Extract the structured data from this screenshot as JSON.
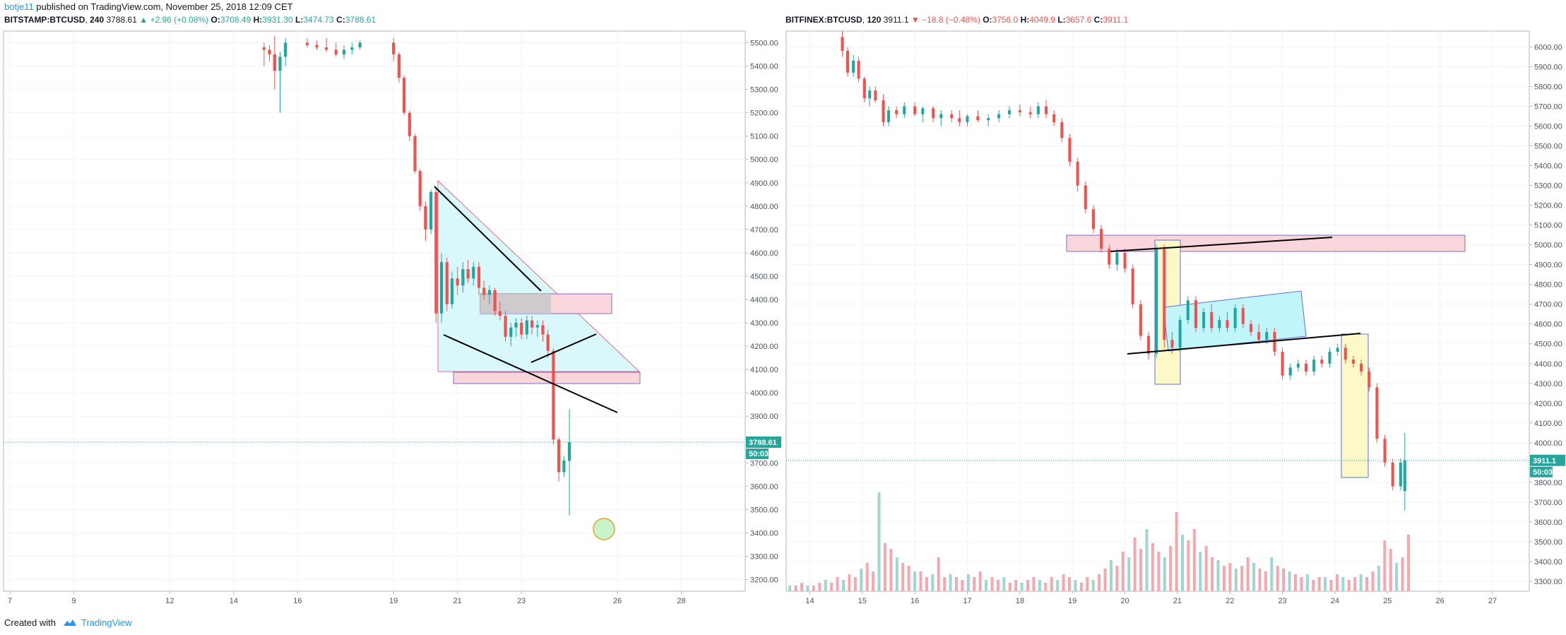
{
  "publication": {
    "author": "botje11",
    "text": " published on TradingView.com, November 25, 2018 12:09 CET"
  },
  "footer": {
    "created_with": "Created with",
    "brand": "TradingView"
  },
  "colors": {
    "up": "#26a69a",
    "down": "#ef5350",
    "grid": "#f0f3fa",
    "last_line": "#26a69a"
  },
  "chart_data": [
    {
      "type": "candlestick",
      "symbol": "BITSTAMP:BTCUSD",
      "interval": "240",
      "last": "3788.61",
      "change": "+2.96 (+0.08%)",
      "direction": "up",
      "ohlc": {
        "O": "3708.49",
        "H": "3931.30",
        "L": "3474.73",
        "C": "3788.61"
      },
      "ylim": [
        3150,
        5550
      ],
      "yticks": [
        3200,
        3300,
        3400,
        3500,
        3600,
        3700,
        3800,
        3900,
        4000,
        4100,
        4200,
        4300,
        4400,
        4500,
        4600,
        4700,
        4800,
        4900,
        5000,
        5100,
        5200,
        5300,
        5400,
        5500
      ],
      "xlim": [
        6.8,
        30.0
      ],
      "xticks": [
        {
          "label": "7",
          "x": 7.0
        },
        {
          "label": "9",
          "x": 9.0
        },
        {
          "label": "12",
          "x": 12.0
        },
        {
          "label": "14",
          "x": 14.0
        },
        {
          "label": "16",
          "x": 16.0
        },
        {
          "label": "19",
          "x": 19.0
        },
        {
          "label": "21",
          "x": 21.0
        },
        {
          "label": "23",
          "x": 23.0
        },
        {
          "label": "26",
          "x": 26.0
        },
        {
          "label": "28",
          "x": 28.0
        }
      ],
      "price_tag": "3788.61",
      "countdown": "50:03",
      "candles": [
        [
          14.95,
          5480,
          5500,
          5400,
          5470
        ],
        [
          15.12,
          5470,
          5490,
          5420,
          5450
        ],
        [
          15.28,
          5450,
          5530,
          5300,
          5380
        ],
        [
          15.45,
          5380,
          5460,
          5200,
          5440
        ],
        [
          15.62,
          5440,
          5520,
          5400,
          5500
        ],
        [
          16.3,
          5500,
          5520,
          5480,
          5490
        ],
        [
          16.6,
          5490,
          5510,
          5470,
          5480
        ],
        [
          16.9,
          5480,
          5520,
          5460,
          5470
        ],
        [
          17.2,
          5470,
          5500,
          5440,
          5450
        ],
        [
          17.45,
          5450,
          5490,
          5430,
          5470
        ],
        [
          17.7,
          5470,
          5500,
          5450,
          5480
        ],
        [
          17.95,
          5480,
          5510,
          5470,
          5500
        ],
        [
          19.0,
          5500,
          5520,
          5420,
          5450
        ],
        [
          19.17,
          5450,
          5460,
          5330,
          5350
        ],
        [
          19.33,
          5350,
          5360,
          5190,
          5200
        ],
        [
          19.5,
          5200,
          5210,
          5080,
          5100
        ],
        [
          19.67,
          5100,
          5110,
          4940,
          4950
        ],
        [
          19.83,
          4950,
          4960,
          4780,
          4800
        ],
        [
          20.0,
          4800,
          4820,
          4650,
          4700
        ],
        [
          20.17,
          4700,
          4870,
          4680,
          4860
        ],
        [
          20.33,
          4860,
          4880,
          4300,
          4340
        ],
        [
          20.5,
          4340,
          4600,
          4300,
          4560
        ],
        [
          20.67,
          4560,
          4580,
          4350,
          4380
        ],
        [
          20.83,
          4380,
          4520,
          4360,
          4490
        ],
        [
          21.0,
          4490,
          4540,
          4420,
          4460
        ],
        [
          21.17,
          4460,
          4560,
          4430,
          4530
        ],
        [
          21.33,
          4530,
          4570,
          4470,
          4490
        ],
        [
          21.5,
          4490,
          4560,
          4460,
          4540
        ],
        [
          21.67,
          4540,
          4560,
          4420,
          4450
        ],
        [
          21.83,
          4450,
          4480,
          4400,
          4420
        ],
        [
          22.0,
          4420,
          4460,
          4380,
          4440
        ],
        [
          22.17,
          4440,
          4450,
          4330,
          4350
        ],
        [
          22.33,
          4350,
          4390,
          4310,
          4330
        ],
        [
          22.5,
          4330,
          4350,
          4220,
          4240
        ],
        [
          22.67,
          4240,
          4300,
          4200,
          4280
        ],
        [
          22.83,
          4280,
          4320,
          4240,
          4300
        ],
        [
          23.0,
          4300,
          4320,
          4230,
          4250
        ],
        [
          23.17,
          4250,
          4330,
          4230,
          4310
        ],
        [
          23.33,
          4310,
          4330,
          4250,
          4280
        ],
        [
          23.5,
          4280,
          4310,
          4240,
          4290
        ],
        [
          23.67,
          4290,
          4310,
          4220,
          4250
        ],
        [
          23.83,
          4250,
          4270,
          4150,
          4180
        ],
        [
          24.0,
          4180,
          4190,
          3780,
          3800
        ],
        [
          24.17,
          3800,
          3810,
          3620,
          3660
        ],
        [
          24.33,
          3660,
          3730,
          3640,
          3710
        ],
        [
          24.5,
          3708.49,
          3931.3,
          3474.73,
          3788.61
        ]
      ]
    },
    {
      "type": "candlestick",
      "symbol": "BITFINEX:BTCUSD",
      "interval": "120",
      "last": "3911.1",
      "change": "−18.8 (−0.48%)",
      "direction": "down",
      "ohlc": {
        "O": "3756.0",
        "H": "4049.9",
        "L": "3657.6",
        "C": "3911.1"
      },
      "ylim": [
        3250,
        6080
      ],
      "yticks": [
        3300,
        3400,
        3500,
        3600,
        3700,
        3800,
        3900,
        4000,
        4100,
        4200,
        4300,
        4400,
        4500,
        4600,
        4700,
        4800,
        4900,
        5000,
        5100,
        5200,
        5300,
        5400,
        5500,
        5600,
        5700,
        5800,
        5900,
        6000
      ],
      "xlim": [
        13.55,
        27.7
      ],
      "xticks": [
        {
          "label": "14",
          "x": 14.0
        },
        {
          "label": "15",
          "x": 15.0
        },
        {
          "label": "16",
          "x": 16.0
        },
        {
          "label": "17",
          "x": 17.0
        },
        {
          "label": "18",
          "x": 18.0
        },
        {
          "label": "19",
          "x": 19.0
        },
        {
          "label": "20",
          "x": 20.0
        },
        {
          "label": "21",
          "x": 21.0
        },
        {
          "label": "22",
          "x": 22.0
        },
        {
          "label": "23",
          "x": 23.0
        },
        {
          "label": "24",
          "x": 24.0
        },
        {
          "label": "25",
          "x": 25.0
        },
        {
          "label": "26",
          "x": 26.0
        },
        {
          "label": "27",
          "x": 27.0
        }
      ],
      "price_tag": "3911.1",
      "countdown": "50:03",
      "candles": [
        [
          14.62,
          6050,
          6080,
          5950,
          5980
        ],
        [
          14.72,
          5980,
          6000,
          5850,
          5870
        ],
        [
          14.83,
          5870,
          5960,
          5850,
          5930
        ],
        [
          14.93,
          5930,
          5950,
          5820,
          5840
        ],
        [
          15.04,
          5840,
          5850,
          5720,
          5740
        ],
        [
          15.14,
          5740,
          5800,
          5700,
          5780
        ],
        [
          15.25,
          5780,
          5800,
          5720,
          5730
        ],
        [
          15.4,
          5730,
          5760,
          5600,
          5620
        ],
        [
          15.5,
          5620,
          5700,
          5600,
          5680
        ],
        [
          15.65,
          5680,
          5700,
          5640,
          5660
        ],
        [
          15.8,
          5660,
          5720,
          5640,
          5700
        ],
        [
          16.0,
          5700,
          5720,
          5650,
          5660
        ],
        [
          16.15,
          5660,
          5700,
          5620,
          5690
        ],
        [
          16.35,
          5690,
          5700,
          5620,
          5640
        ],
        [
          16.5,
          5640,
          5680,
          5600,
          5660
        ],
        [
          16.7,
          5660,
          5680,
          5620,
          5640
        ],
        [
          16.85,
          5640,
          5680,
          5600,
          5620
        ],
        [
          17.0,
          5620,
          5660,
          5600,
          5650
        ],
        [
          17.2,
          5650,
          5680,
          5620,
          5630
        ],
        [
          17.4,
          5630,
          5660,
          5600,
          5640
        ],
        [
          17.6,
          5640,
          5680,
          5620,
          5660
        ],
        [
          17.8,
          5660,
          5700,
          5640,
          5680
        ],
        [
          18.0,
          5680,
          5710,
          5650,
          5670
        ],
        [
          18.2,
          5670,
          5700,
          5640,
          5660
        ],
        [
          18.35,
          5660,
          5720,
          5640,
          5700
        ],
        [
          18.5,
          5700,
          5730,
          5640,
          5660
        ],
        [
          18.65,
          5660,
          5680,
          5600,
          5620
        ],
        [
          18.8,
          5620,
          5640,
          5520,
          5540
        ],
        [
          18.95,
          5540,
          5560,
          5400,
          5420
        ],
        [
          19.1,
          5420,
          5440,
          5270,
          5300
        ],
        [
          19.25,
          5300,
          5320,
          5160,
          5180
        ],
        [
          19.4,
          5180,
          5200,
          5060,
          5080
        ],
        [
          19.55,
          5080,
          5100,
          4960,
          4980
        ],
        [
          19.7,
          4980,
          5000,
          4880,
          4900
        ],
        [
          19.85,
          4900,
          4980,
          4870,
          4960
        ],
        [
          20.0,
          4960,
          4980,
          4860,
          4880
        ],
        [
          20.15,
          4880,
          4900,
          4680,
          4700
        ],
        [
          20.3,
          4700,
          4720,
          4520,
          4540
        ],
        [
          20.45,
          4540,
          4560,
          4420,
          4450
        ],
        [
          20.6,
          4450,
          5000,
          4430,
          4980
        ],
        [
          20.75,
          4980,
          5000,
          4480,
          4520
        ],
        [
          20.9,
          4520,
          4560,
          4450,
          4480
        ],
        [
          21.05,
          4480,
          4640,
          4460,
          4620
        ],
        [
          21.2,
          4620,
          4740,
          4600,
          4720
        ],
        [
          21.35,
          4720,
          4740,
          4560,
          4580
        ],
        [
          21.5,
          4580,
          4680,
          4560,
          4660
        ],
        [
          21.65,
          4660,
          4700,
          4560,
          4580
        ],
        [
          21.8,
          4580,
          4640,
          4560,
          4620
        ],
        [
          21.95,
          4620,
          4660,
          4560,
          4580
        ],
        [
          22.1,
          4580,
          4700,
          4560,
          4680
        ],
        [
          22.25,
          4680,
          4700,
          4580,
          4600
        ],
        [
          22.4,
          4600,
          4620,
          4540,
          4560
        ],
        [
          22.55,
          4560,
          4600,
          4500,
          4520
        ],
        [
          22.7,
          4520,
          4580,
          4500,
          4560
        ],
        [
          22.85,
          4560,
          4580,
          4440,
          4460
        ],
        [
          23.0,
          4460,
          4480,
          4320,
          4340
        ],
        [
          23.15,
          4340,
          4400,
          4320,
          4380
        ],
        [
          23.3,
          4380,
          4420,
          4360,
          4400
        ],
        [
          23.45,
          4400,
          4420,
          4340,
          4360
        ],
        [
          23.6,
          4360,
          4440,
          4340,
          4420
        ],
        [
          23.75,
          4420,
          4440,
          4380,
          4400
        ],
        [
          23.9,
          4400,
          4480,
          4380,
          4460
        ],
        [
          24.05,
          4460,
          4500,
          4440,
          4480
        ],
        [
          24.2,
          4480,
          4500,
          4400,
          4420
        ],
        [
          24.35,
          4420,
          4440,
          4380,
          4400
        ],
        [
          24.5,
          4400,
          4420,
          4340,
          4360
        ],
        [
          24.65,
          4360,
          4380,
          4260,
          4280
        ],
        [
          24.8,
          4280,
          4300,
          4000,
          4020
        ],
        [
          24.95,
          4020,
          4040,
          3880,
          3900
        ],
        [
          25.1,
          3900,
          3920,
          3760,
          3780
        ],
        [
          25.25,
          3780,
          3920,
          3760,
          3900
        ],
        [
          25.33,
          3756.0,
          4049.9,
          3657.6,
          3911.1
        ]
      ]
    }
  ]
}
